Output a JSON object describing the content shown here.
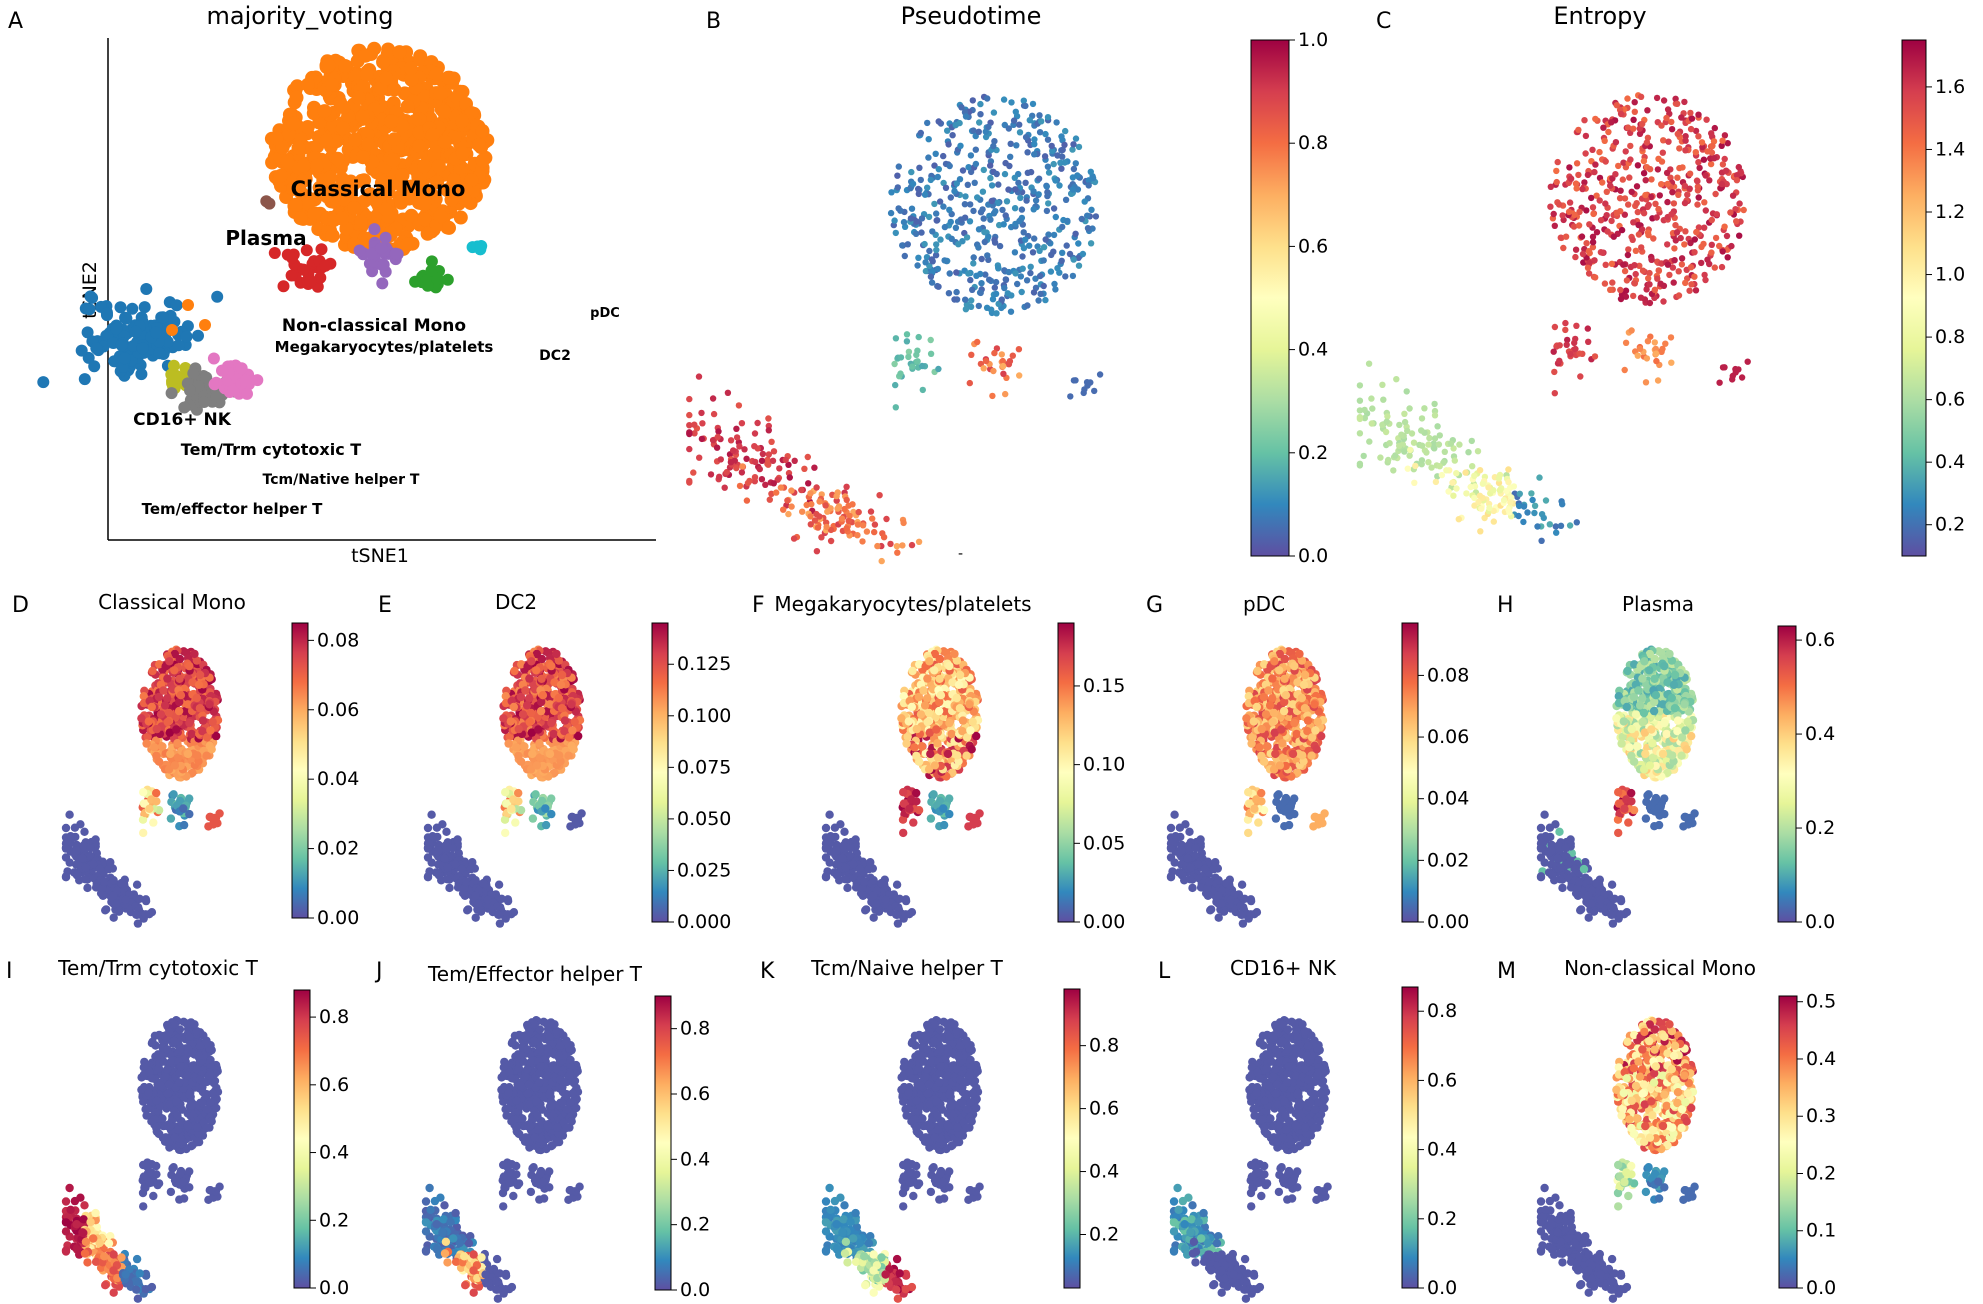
{
  "panels": [
    {
      "letter": "A",
      "title": "majority_voting",
      "xlabel": "tSNE1",
      "ylabel": "tSNE2"
    },
    {
      "letter": "B",
      "title": "Pseudotime"
    },
    {
      "letter": "C",
      "title": "Entropy"
    },
    {
      "letter": "D",
      "title": "Classical Mono"
    },
    {
      "letter": "E",
      "title": "DC2"
    },
    {
      "letter": "F",
      "title": "Megakaryocytes/platelets"
    },
    {
      "letter": "G",
      "title": "pDC"
    },
    {
      "letter": "H",
      "title": "Plasma"
    },
    {
      "letter": "I",
      "title": "Tem/Trm cytotoxic T"
    },
    {
      "letter": "J",
      "title": "Tem/Effector helper T"
    },
    {
      "letter": "K",
      "title": "Tcm/Naive helper T"
    },
    {
      "letter": "L",
      "title": "CD16+ NK"
    },
    {
      "letter": "M",
      "title": "Non-classical Mono"
    }
  ],
  "colormap": "Spectral_r",
  "chart_data": [
    {
      "panel": "A",
      "type": "scatter",
      "title": "majority_voting",
      "xlabel": "tSNE1",
      "ylabel": "tSNE2",
      "cluster_labels": [
        "Classical Mono",
        "Plasma",
        "Non-classical Mono",
        "pDC",
        "Megakaryocytes/platelets",
        "DC2",
        "CD16+ NK",
        "Tem/Trm cytotoxic T",
        "Tcm/Native helper T",
        "Tem/effector helper T"
      ],
      "cluster_colors": {
        "Classical Mono": "#ff7f0e",
        "Plasma": "#8c564b",
        "Non-classical Mono": "#9467bd",
        "pDC": "#17becf",
        "Megakaryocytes/platelets": "#d62728",
        "DC2": "#2ca02c",
        "CD16+ NK": "#1f77b4",
        "Tem/Trm cytotoxic T": "#bcbd22",
        "Tcm/Native helper T": "#e377c2",
        "Tem/effector helper T": "#7f7f7f"
      }
    },
    {
      "panel": "B",
      "type": "scatter",
      "title": "Pseudotime",
      "colorbar": {
        "ticks": [
          "0.0",
          "0.2",
          "0.4",
          "0.6",
          "0.8",
          "1.0"
        ],
        "range": [
          0,
          1.0
        ]
      }
    },
    {
      "panel": "C",
      "type": "scatter",
      "title": "Entropy",
      "colorbar": {
        "ticks": [
          "0.2",
          "0.4",
          "0.6",
          "0.8",
          "1.0",
          "1.2",
          "1.4",
          "1.6"
        ],
        "range": [
          0.1,
          1.75
        ]
      }
    },
    {
      "panel": "D",
      "type": "scatter",
      "title": "Classical Mono",
      "colorbar": {
        "ticks": [
          "0.00",
          "0.02",
          "0.04",
          "0.06",
          "0.08"
        ],
        "range": [
          0,
          0.085
        ]
      }
    },
    {
      "panel": "E",
      "type": "scatter",
      "title": "DC2",
      "colorbar": {
        "ticks": [
          "0.000",
          "0.025",
          "0.050",
          "0.075",
          "0.100",
          "0.125"
        ],
        "range": [
          0,
          0.145
        ]
      }
    },
    {
      "panel": "F",
      "type": "scatter",
      "title": "Megakaryocytes/platelets",
      "colorbar": {
        "ticks": [
          "0.00",
          "0.05",
          "0.10",
          "0.15"
        ],
        "range": [
          0,
          0.19
        ]
      }
    },
    {
      "panel": "G",
      "type": "scatter",
      "title": "pDC",
      "colorbar": {
        "ticks": [
          "0.00",
          "0.02",
          "0.04",
          "0.06",
          "0.08"
        ],
        "range": [
          0,
          0.097
        ]
      }
    },
    {
      "panel": "H",
      "type": "scatter",
      "title": "Plasma",
      "colorbar": {
        "ticks": [
          "0.0",
          "0.2",
          "0.4",
          "0.6"
        ],
        "range": [
          0,
          0.63
        ]
      }
    },
    {
      "panel": "I",
      "type": "scatter",
      "title": "Tem/Trm cytotoxic T",
      "colorbar": {
        "ticks": [
          "0.0",
          "0.2",
          "0.4",
          "0.6",
          "0.8"
        ],
        "range": [
          0,
          0.88
        ]
      }
    },
    {
      "panel": "J",
      "type": "scatter",
      "title": "Tem/Effector helper T",
      "colorbar": {
        "ticks": [
          "0.0",
          "0.2",
          "0.4",
          "0.6",
          "0.8"
        ],
        "range": [
          0,
          0.9
        ]
      }
    },
    {
      "panel": "K",
      "type": "scatter",
      "title": "Tcm/Naive helper T",
      "colorbar": {
        "ticks": [
          "0.2",
          "0.4",
          "0.6",
          "0.8"
        ],
        "range": [
          0.03,
          0.98
        ]
      }
    },
    {
      "panel": "L",
      "type": "scatter",
      "title": "CD16+ NK",
      "colorbar": {
        "ticks": [
          "0.0",
          "0.2",
          "0.4",
          "0.6",
          "0.8"
        ],
        "range": [
          0,
          0.87
        ]
      }
    },
    {
      "panel": "M",
      "type": "scatter",
      "title": "Non-classical Mono",
      "colorbar": {
        "ticks": [
          "0.0",
          "0.1",
          "0.2",
          "0.3",
          "0.4",
          "0.5"
        ],
        "range": [
          0,
          0.51
        ]
      }
    }
  ]
}
